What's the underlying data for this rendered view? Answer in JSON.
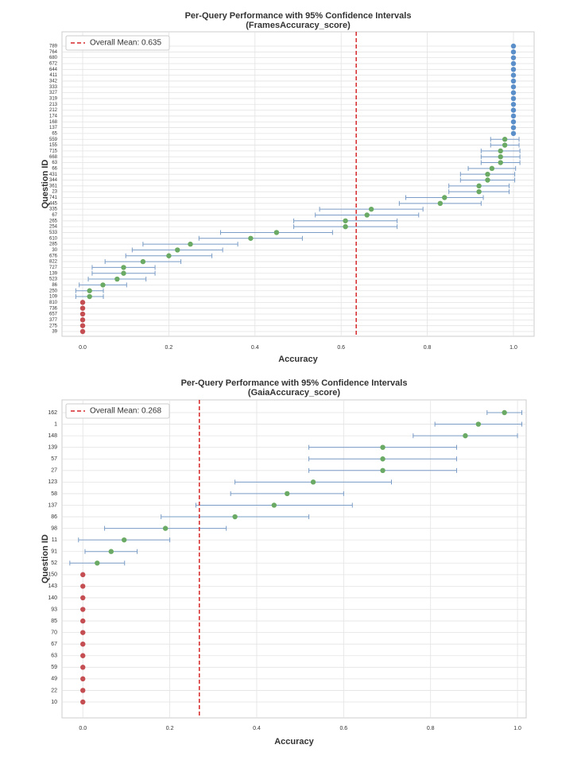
{
  "chart_data": [
    {
      "type": "dotplot",
      "title": "Per-Query Performance with 95% Confidence Intervals",
      "subtitle": "(FramesAccuracy_score)",
      "x_label": "Accuracy",
      "y_label": "Question ID",
      "categories": [
        "789",
        "764",
        "680",
        "672",
        "644",
        "411",
        "342",
        "333",
        "327",
        "319",
        "213",
        "212",
        "174",
        "168",
        "137",
        "65",
        "559",
        "155",
        "715",
        "668",
        "63",
        "66",
        "431",
        "344",
        "361",
        "23",
        "741",
        "445",
        "335",
        "67",
        "265",
        "254",
        "533",
        "610",
        "285",
        "30",
        "676",
        "822",
        "727",
        "139",
        "523",
        "86",
        "250",
        "109",
        "810",
        "736",
        "657",
        "377",
        "275",
        "39"
      ],
      "values": [
        1,
        1,
        1,
        1,
        1,
        1,
        1,
        1,
        1,
        1,
        1,
        1,
        1,
        1,
        1,
        1,
        0.98,
        0.98,
        0.97,
        0.97,
        0.97,
        0.95,
        0.94,
        0.94,
        0.92,
        0.92,
        0.84,
        0.83,
        0.67,
        0.66,
        0.61,
        0.61,
        0.45,
        0.39,
        0.25,
        0.22,
        0.2,
        0.14,
        0.095,
        0.095,
        0.08,
        0.047,
        0.016,
        0.016,
        0,
        0,
        0,
        0,
        0,
        0
      ],
      "errors": [
        0,
        0,
        0,
        0,
        0,
        0,
        0,
        0,
        0,
        0,
        0,
        0,
        0,
        0,
        0,
        0,
        0.033,
        0.033,
        0.045,
        0.045,
        0.045,
        0.055,
        0.063,
        0.063,
        0.07,
        0.07,
        0.09,
        0.095,
        0.12,
        0.12,
        0.12,
        0.12,
        0.13,
        0.12,
        0.11,
        0.105,
        0.1,
        0.088,
        0.073,
        0.073,
        0.067,
        0.055,
        0.032,
        0.032,
        0,
        0,
        0,
        0,
        0,
        0
      ],
      "point_colors": [
        "#5b8fc9",
        "#5b8fc9",
        "#5b8fc9",
        "#5b8fc9",
        "#5b8fc9",
        "#5b8fc9",
        "#5b8fc9",
        "#5b8fc9",
        "#5b8fc9",
        "#5b8fc9",
        "#5b8fc9",
        "#5b8fc9",
        "#5b8fc9",
        "#5b8fc9",
        "#5b8fc9",
        "#5b8fc9",
        "#6aaa64",
        "#6aaa64",
        "#6aaa64",
        "#6aaa64",
        "#6aaa64",
        "#6aaa64",
        "#6aaa64",
        "#6aaa64",
        "#6aaa64",
        "#6aaa64",
        "#6aaa64",
        "#6aaa64",
        "#6aaa64",
        "#6aaa64",
        "#6aaa64",
        "#6aaa64",
        "#6aaa64",
        "#6aaa64",
        "#6aaa64",
        "#6aaa64",
        "#6aaa64",
        "#6aaa64",
        "#6aaa64",
        "#6aaa64",
        "#6aaa64",
        "#6aaa64",
        "#6aaa64",
        "#6aaa64",
        "#c44e52",
        "#c44e52",
        "#c44e52",
        "#c44e52",
        "#c44e52",
        "#c44e52"
      ],
      "error_color": "#7a9cc6",
      "mean_line": {
        "value": 0.635,
        "label": "Overall Mean: 0.635",
        "color": "#d62728"
      },
      "xlim": [
        -0.048,
        1.048
      ],
      "xticks": [
        {
          "value": 0,
          "label": "0.0"
        },
        {
          "value": 0.2,
          "label": "0.2"
        },
        {
          "value": 0.4,
          "label": "0.4"
        },
        {
          "value": 0.6,
          "label": "0.6"
        },
        {
          "value": 0.8,
          "label": "0.8"
        },
        {
          "value": 1,
          "label": "1.0"
        }
      ],
      "grid": true,
      "legend": "upper left"
    },
    {
      "type": "dotplot",
      "title": "Per-Query Performance with 95% Confidence Intervals",
      "subtitle": "(GaiaAccuracy_score)",
      "x_label": "Accuracy",
      "y_label": "Question ID",
      "categories": [
        "162",
        "1",
        "148",
        "139",
        "57",
        "27",
        "123",
        "58",
        "137",
        "86",
        "98",
        "11",
        "91",
        "52",
        "150",
        "143",
        "140",
        "93",
        "85",
        "70",
        "67",
        "63",
        "59",
        "49",
        "22",
        "10"
      ],
      "values": [
        0.97,
        0.91,
        0.88,
        0.69,
        0.69,
        0.69,
        0.53,
        0.47,
        0.44,
        0.35,
        0.19,
        0.095,
        0.065,
        0.033,
        0,
        0,
        0,
        0,
        0,
        0,
        0,
        0,
        0,
        0,
        0,
        0
      ],
      "errors": [
        0.04,
        0.1,
        0.12,
        0.17,
        0.17,
        0.17,
        0.18,
        0.13,
        0.18,
        0.17,
        0.14,
        0.105,
        0.06,
        0.063,
        0,
        0,
        0,
        0,
        0,
        0,
        0,
        0,
        0,
        0,
        0,
        0
      ],
      "point_colors": [
        "#6aaa64",
        "#6aaa64",
        "#6aaa64",
        "#6aaa64",
        "#6aaa64",
        "#6aaa64",
        "#6aaa64",
        "#6aaa64",
        "#6aaa64",
        "#6aaa64",
        "#6aaa64",
        "#6aaa64",
        "#6aaa64",
        "#6aaa64",
        "#c44e52",
        "#c44e52",
        "#c44e52",
        "#c44e52",
        "#c44e52",
        "#c44e52",
        "#c44e52",
        "#c44e52",
        "#c44e52",
        "#c44e52",
        "#c44e52",
        "#c44e52"
      ],
      "error_color": "#7a9cc6",
      "mean_line": {
        "value": 0.268,
        "label": "Overall Mean: 0.268",
        "color": "#d62728"
      },
      "xlim": [
        -0.048,
        1.02
      ],
      "xticks": [
        {
          "value": 0,
          "label": "0.0"
        },
        {
          "value": 0.2,
          "label": "0.2"
        },
        {
          "value": 0.4,
          "label": "0.4"
        },
        {
          "value": 0.6,
          "label": "0.6"
        },
        {
          "value": 0.8,
          "label": "0.8"
        },
        {
          "value": 1,
          "label": "1.0"
        }
      ],
      "grid": true,
      "legend": "upper left"
    }
  ]
}
